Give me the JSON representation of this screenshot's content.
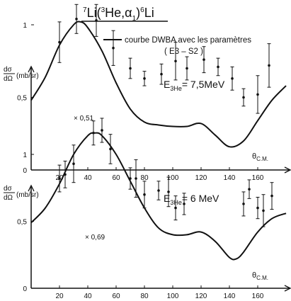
{
  "figure": {
    "reaction": {
      "a": "7",
      "b": "Li(",
      "c": "3",
      "d": "He,",
      "e": "α",
      "f": "1",
      "g": ")",
      "h": "6",
      "i": "Li"
    },
    "legend_line": "courbe DWBA avec les paramètres",
    "legend_params": "( E3 – S2 )",
    "ylabel_num": "dσ",
    "ylabel_den": "dΩ",
    "ylabel_unit": "(mb/sr)",
    "xlabel_main": "θ",
    "xlabel_sub": "C.M."
  },
  "chart_data": [
    {
      "type": "scatter",
      "energy_label_main": "E",
      "energy_label_sub": "3He",
      "energy_value": "= 7,5MeV",
      "scale_label": "× 0,51",
      "xlim": [
        0,
        180
      ],
      "ylim": [
        0,
        1.3
      ],
      "x_ticks": [
        20,
        40,
        60,
        80,
        100,
        120,
        140,
        160
      ],
      "y_ticks": [
        0,
        0.5,
        1
      ],
      "y_tick_labels": [
        "0",
        "0,5",
        "1"
      ],
      "x": [
        20,
        32,
        46,
        58,
        70,
        80,
        92,
        102,
        110,
        122,
        132,
        142,
        150,
        160,
        168
      ],
      "y": [
        0.88,
        1.04,
        1.03,
        0.84,
        0.7,
        0.63,
        0.66,
        0.75,
        0.7,
        0.76,
        0.71,
        0.63,
        0.5,
        0.52,
        0.72
      ],
      "err": [
        0.14,
        0.1,
        0.11,
        0.12,
        0.07,
        0.05,
        0.07,
        0.13,
        0.08,
        0.09,
        0.06,
        0.08,
        0.06,
        0.13,
        0.15
      ],
      "curve": {
        "x": [
          0,
          10,
          20,
          30,
          35,
          40,
          50,
          60,
          70,
          80,
          90,
          100,
          110,
          120,
          130,
          140,
          150,
          160,
          170,
          180
        ],
        "y": [
          0.48,
          0.64,
          0.86,
          1.0,
          1.02,
          0.98,
          0.82,
          0.6,
          0.42,
          0.33,
          0.31,
          0.3,
          0.3,
          0.32,
          0.24,
          0.16,
          0.2,
          0.34,
          0.48,
          0.58
        ]
      }
    },
    {
      "type": "scatter",
      "energy_label_main": "E",
      "energy_label_sub": "3He",
      "energy_value": "= 6 MeV",
      "scale_label": "× 0,69",
      "xlim": [
        0,
        180
      ],
      "ylim": [
        0,
        1.45
      ],
      "x_ticks": [
        20,
        40,
        60,
        80,
        100,
        120,
        140,
        160
      ],
      "y_ticks": [
        0,
        0.5,
        1
      ],
      "y_tick_labels": [
        "0",
        "0,5",
        "1"
      ],
      "x": [
        20,
        24,
        30,
        44,
        50,
        56,
        70,
        74,
        80,
        90,
        97,
        102,
        108,
        150,
        154,
        160,
        164,
        170
      ],
      "y": [
        0.82,
        0.85,
        0.93,
        1.16,
        1.18,
        1.04,
        0.82,
        0.82,
        0.7,
        0.73,
        0.72,
        0.6,
        0.63,
        0.63,
        0.74,
        0.6,
        0.58,
        0.69
      ],
      "err": [
        0.1,
        0.1,
        0.14,
        0.09,
        0.09,
        0.11,
        0.08,
        0.14,
        0.1,
        0.07,
        0.11,
        0.09,
        0.08,
        0.09,
        0.07,
        0.08,
        0.12,
        0.1
      ],
      "curve": {
        "x": [
          0,
          10,
          20,
          30,
          40,
          45,
          50,
          60,
          70,
          80,
          90,
          100,
          110,
          120,
          130,
          140,
          145,
          150,
          160,
          170,
          180
        ],
        "y": [
          0.49,
          0.6,
          0.78,
          1.0,
          1.14,
          1.16,
          1.14,
          1.0,
          0.8,
          0.6,
          0.45,
          0.4,
          0.4,
          0.42,
          0.35,
          0.23,
          0.22,
          0.27,
          0.42,
          0.52,
          0.56
        ]
      }
    }
  ]
}
